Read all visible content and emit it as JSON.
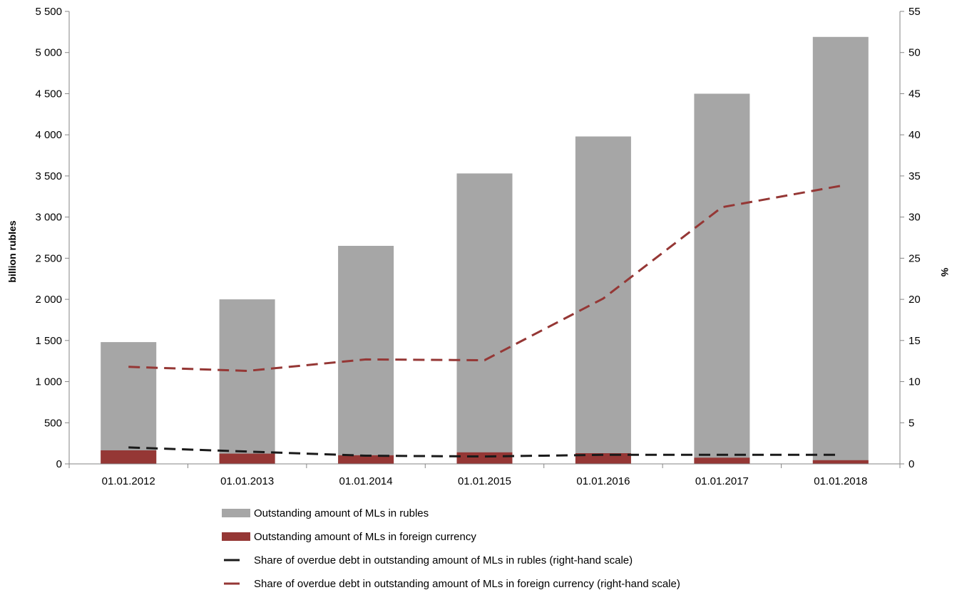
{
  "chart_data": {
    "type": "bar",
    "categories": [
      "01.01.2012",
      "01.01.2013",
      "01.01.2014",
      "01.01.2015",
      "01.01.2016",
      "01.01.2017",
      "01.01.2018"
    ],
    "series": [
      {
        "name": "Outstanding amount of MLs in rubles",
        "type": "bar",
        "axis": "left",
        "color": "#a6a6a6",
        "values": [
          1480,
          2000,
          2650,
          3530,
          3980,
          4500,
          5190
        ]
      },
      {
        "name": "Outstanding amount of MLs in foreign currency",
        "type": "bar",
        "axis": "left",
        "color": "#953735",
        "values": [
          165,
          125,
          105,
          140,
          130,
          75,
          45
        ]
      },
      {
        "name": "Share of overdue debt in outstanding amount of MLs in rubles (right-hand scale)",
        "type": "line",
        "axis": "right",
        "color": "#1a1a1a",
        "dashed": true,
        "values": [
          2.0,
          1.5,
          1.0,
          0.9,
          1.1,
          1.1,
          1.1
        ]
      },
      {
        "name": "Share of overdue debt in outstanding amount of MLs in foreign currency (right-hand scale)",
        "type": "line",
        "axis": "right",
        "color": "#953735",
        "dashed": true,
        "values": [
          11.8,
          11.3,
          12.7,
          12.6,
          20.1,
          31.2,
          33.8
        ]
      }
    ],
    "ylabel": "billion rubles",
    "y2label": "%",
    "ylim": [
      0,
      5500
    ],
    "y2lim": [
      0,
      55
    ],
    "yticks": [
      0,
      500,
      1000,
      1500,
      2000,
      2500,
      3000,
      3500,
      4000,
      4500,
      5000,
      5500
    ],
    "yticks_labels": [
      "0",
      "500",
      "1 000",
      "1 500",
      "2 000",
      "2 500",
      "3 000",
      "3 500",
      "4 000",
      "4 500",
      "5 000",
      "5 500"
    ],
    "y2ticks": [
      0,
      5,
      10,
      15,
      20,
      25,
      30,
      35,
      40,
      45,
      50,
      55
    ],
    "y2ticks_labels": [
      "0",
      "5",
      "10",
      "15",
      "20",
      "25",
      "30",
      "35",
      "40",
      "45",
      "50",
      "55"
    ],
    "grid": false,
    "legend_position": "bottom-center",
    "legend": [
      "Outstanding amount of MLs in rubles",
      "Outstanding amount of MLs in foreign currency",
      "Share of overdue debt in outstanding amount of MLs in rubles (right-hand scale)",
      "Share of overdue debt in outstanding amount of MLs in foreign currency (right-hand scale)"
    ]
  }
}
